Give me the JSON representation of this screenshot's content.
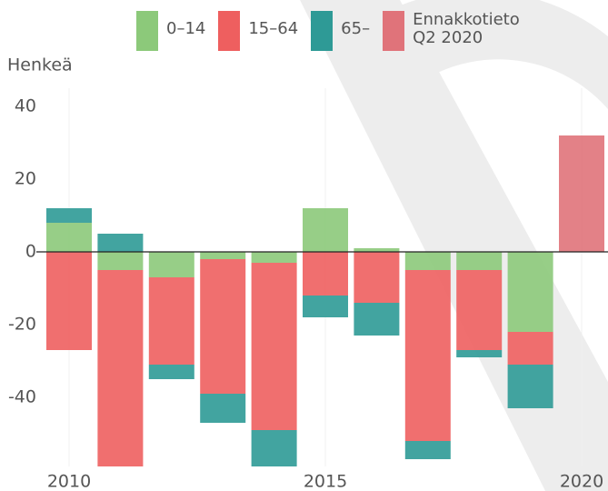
{
  "chart_data": {
    "type": "bar",
    "stacked": true,
    "y_label": "Henkeä",
    "categories": [
      "2010",
      null,
      null,
      null,
      null,
      "2015",
      null,
      null,
      null,
      null,
      "2020"
    ],
    "series": [
      {
        "name": "0–14",
        "color": "#8cc97a",
        "values": [
          8,
          -5,
          -7,
          -2,
          -3,
          12,
          1,
          -5,
          -5,
          -22,
          null
        ]
      },
      {
        "name": "15–64",
        "color": "#ee5f5f",
        "values": [
          -27,
          -54,
          -24,
          -37,
          -46,
          -12,
          -14,
          -47,
          -22,
          -9,
          null
        ]
      },
      {
        "name": "65–",
        "color": "#2e9a96",
        "values": [
          4,
          5,
          -4,
          -8,
          -10,
          -6,
          -9,
          -5,
          -2,
          -12,
          null
        ]
      },
      {
        "name": "Ennakkotieto Q2 2020",
        "color": "#e0737a",
        "values": [
          null,
          null,
          null,
          null,
          null,
          null,
          null,
          null,
          null,
          null,
          32
        ]
      }
    ],
    "ylim": [
      -59,
      45
    ],
    "yticks": [
      -40,
      -20,
      0,
      20,
      40
    ],
    "grid": false
  }
}
